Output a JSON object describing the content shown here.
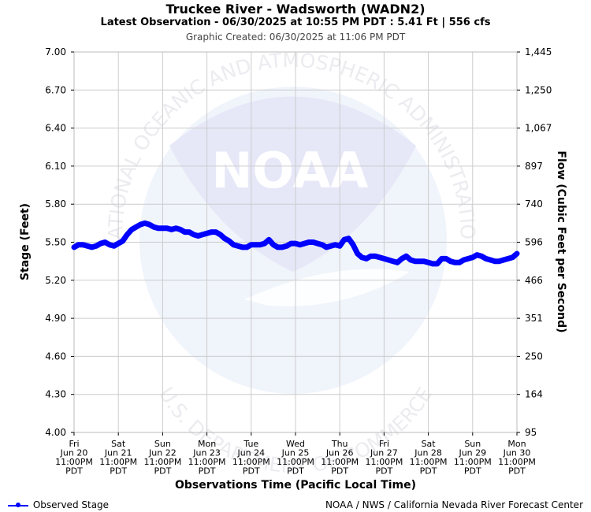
{
  "header": {
    "title": "Truckee River - Wadsworth (WADN2)",
    "subtitle": "Latest Observation - 06/30/2025 at 10:55 PM PDT : 5.41 Ft | 556 cfs",
    "created": "Graphic Created: 06/30/2025 at 11:06 PM PDT"
  },
  "footer": {
    "legend_label": "Observed Stage",
    "credit": "NOAA / NWS / California Nevada River Forecast Center"
  },
  "watermark": {
    "logo_text": "NOAA",
    "ring_text_top": "NATIONAL OCEANIC AND ATMOSPHERIC ADMINISTRATION",
    "ring_text_bottom": "U.S. DEPARTMENT OF COMMERCE"
  },
  "colors": {
    "series": "#0000ff",
    "grid": "#cccccc",
    "watermark": "#e8eafa"
  },
  "chart_data": {
    "type": "line",
    "xlabel": "Observations Time (Pacific Local Time)",
    "ylabel": "Stage (Feet)",
    "ylabel_right": "Flow (Cubic Feet per Second)",
    "ylim": [
      4.0,
      7.0
    ],
    "yticks": [
      "4.00",
      "4.30",
      "4.60",
      "4.90",
      "5.20",
      "5.50",
      "5.80",
      "6.10",
      "6.40",
      "6.70",
      "7.00"
    ],
    "yticks_right": [
      "95",
      "164",
      "250",
      "351",
      "466",
      "596",
      "740",
      "897",
      "1,067",
      "1,250",
      "1,445"
    ],
    "xticks": [
      {
        "day": "Fri",
        "date": "Jun 20",
        "time": "11:00PM",
        "tz": "PDT"
      },
      {
        "day": "Sat",
        "date": "Jun 21",
        "time": "11:00PM",
        "tz": "PDT"
      },
      {
        "day": "Sun",
        "date": "Jun 22",
        "time": "11:00PM",
        "tz": "PDT"
      },
      {
        "day": "Mon",
        "date": "Jun 23",
        "time": "11:00PM",
        "tz": "PDT"
      },
      {
        "day": "Tue",
        "date": "Jun 24",
        "time": "11:00PM",
        "tz": "PDT"
      },
      {
        "day": "Wed",
        "date": "Jun 25",
        "time": "11:00PM",
        "tz": "PDT"
      },
      {
        "day": "Thu",
        "date": "Jun 26",
        "time": "11:00PM",
        "tz": "PDT"
      },
      {
        "day": "Fri",
        "date": "Jun 27",
        "time": "11:00PM",
        "tz": "PDT"
      },
      {
        "day": "Sat",
        "date": "Jun 28",
        "time": "11:00PM",
        "tz": "PDT"
      },
      {
        "day": "Sun",
        "date": "Jun 29",
        "time": "11:00PM",
        "tz": "PDT"
      },
      {
        "day": "Mon",
        "date": "Jun 30",
        "time": "11:00PM",
        "tz": "PDT"
      }
    ],
    "grid": true,
    "legend_position": "bottom-left",
    "series": [
      {
        "name": "Observed Stage",
        "x": [
          0.0,
          0.1,
          0.2,
          0.3,
          0.4,
          0.5,
          0.6,
          0.7,
          0.8,
          0.9,
          1.0,
          1.1,
          1.2,
          1.3,
          1.4,
          1.5,
          1.6,
          1.7,
          1.8,
          1.9,
          2.0,
          2.1,
          2.2,
          2.3,
          2.4,
          2.5,
          2.6,
          2.7,
          2.8,
          2.9,
          3.0,
          3.1,
          3.2,
          3.3,
          3.4,
          3.5,
          3.6,
          3.7,
          3.8,
          3.9,
          4.0,
          4.1,
          4.2,
          4.3,
          4.4,
          4.5,
          4.6,
          4.7,
          4.8,
          4.9,
          5.0,
          5.1,
          5.2,
          5.3,
          5.4,
          5.5,
          5.6,
          5.7,
          5.8,
          5.9,
          6.0,
          6.1,
          6.2,
          6.3,
          6.4,
          6.5,
          6.6,
          6.7,
          6.8,
          6.9,
          7.0,
          7.1,
          7.2,
          7.3,
          7.4,
          7.5,
          7.6,
          7.7,
          7.8,
          7.9,
          8.0,
          8.1,
          8.2,
          8.3,
          8.4,
          8.5,
          8.6,
          8.7,
          8.8,
          8.9,
          9.0,
          9.1,
          9.2,
          9.3,
          9.4,
          9.5,
          9.6,
          9.7,
          9.8,
          9.9,
          10.0
        ],
        "values": [
          5.46,
          5.48,
          5.48,
          5.47,
          5.46,
          5.47,
          5.49,
          5.5,
          5.48,
          5.47,
          5.49,
          5.51,
          5.56,
          5.6,
          5.62,
          5.64,
          5.65,
          5.64,
          5.62,
          5.61,
          5.61,
          5.61,
          5.6,
          5.61,
          5.6,
          5.58,
          5.58,
          5.56,
          5.55,
          5.56,
          5.57,
          5.58,
          5.58,
          5.56,
          5.53,
          5.51,
          5.48,
          5.47,
          5.46,
          5.46,
          5.48,
          5.48,
          5.48,
          5.49,
          5.52,
          5.48,
          5.46,
          5.46,
          5.47,
          5.49,
          5.49,
          5.48,
          5.49,
          5.5,
          5.5,
          5.49,
          5.48,
          5.46,
          5.47,
          5.48,
          5.47,
          5.52,
          5.53,
          5.48,
          5.41,
          5.38,
          5.37,
          5.39,
          5.39,
          5.38,
          5.37,
          5.36,
          5.35,
          5.34,
          5.37,
          5.39,
          5.36,
          5.35,
          5.35,
          5.35,
          5.34,
          5.33,
          5.33,
          5.37,
          5.37,
          5.35,
          5.34,
          5.34,
          5.36,
          5.37,
          5.38,
          5.4,
          5.39,
          5.37,
          5.36,
          5.35,
          5.35,
          5.36,
          5.37,
          5.38,
          5.41
        ]
      }
    ]
  }
}
